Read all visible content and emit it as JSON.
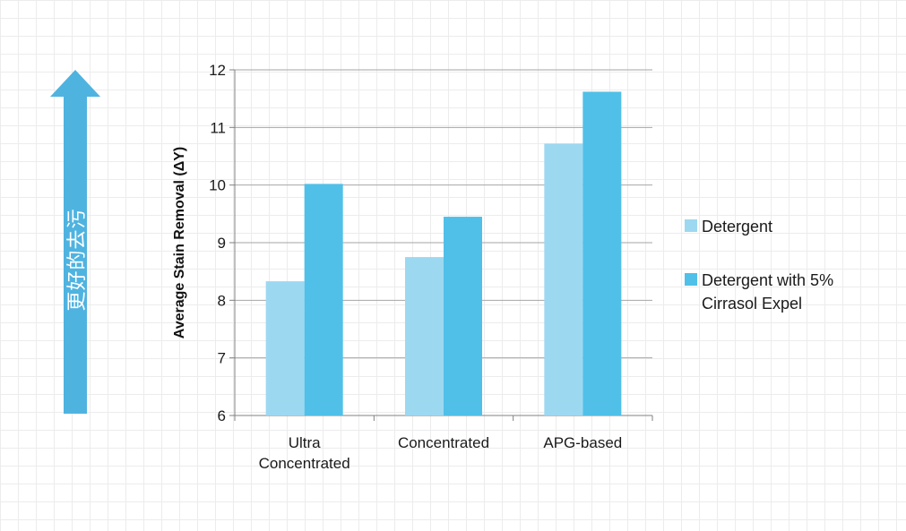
{
  "indicator": {
    "label": "更好的去污",
    "color": "#4fb3e0"
  },
  "chart_data": {
    "type": "bar",
    "ylabel": "Average Stain Removal (ΔY)",
    "xlabel": "",
    "ylim": [
      6,
      12
    ],
    "yticks": [
      6,
      7,
      8,
      9,
      10,
      11,
      12
    ],
    "grid": true,
    "legend_position": "right",
    "categories": [
      [
        "Ultra",
        "Concentrated"
      ],
      [
        "Concentrated"
      ],
      [
        "APG-based"
      ]
    ],
    "series": [
      {
        "name": "Detergent",
        "color": "#9dd8f1",
        "values": [
          8.33,
          8.75,
          10.72
        ]
      },
      {
        "name": "Detergent with 5% Cirrasol Expel",
        "name_lines": [
          "Detergent with 5%",
          "Cirrasol Expel"
        ],
        "color": "#50c0e8",
        "values": [
          10.02,
          9.45,
          11.62
        ]
      }
    ]
  }
}
